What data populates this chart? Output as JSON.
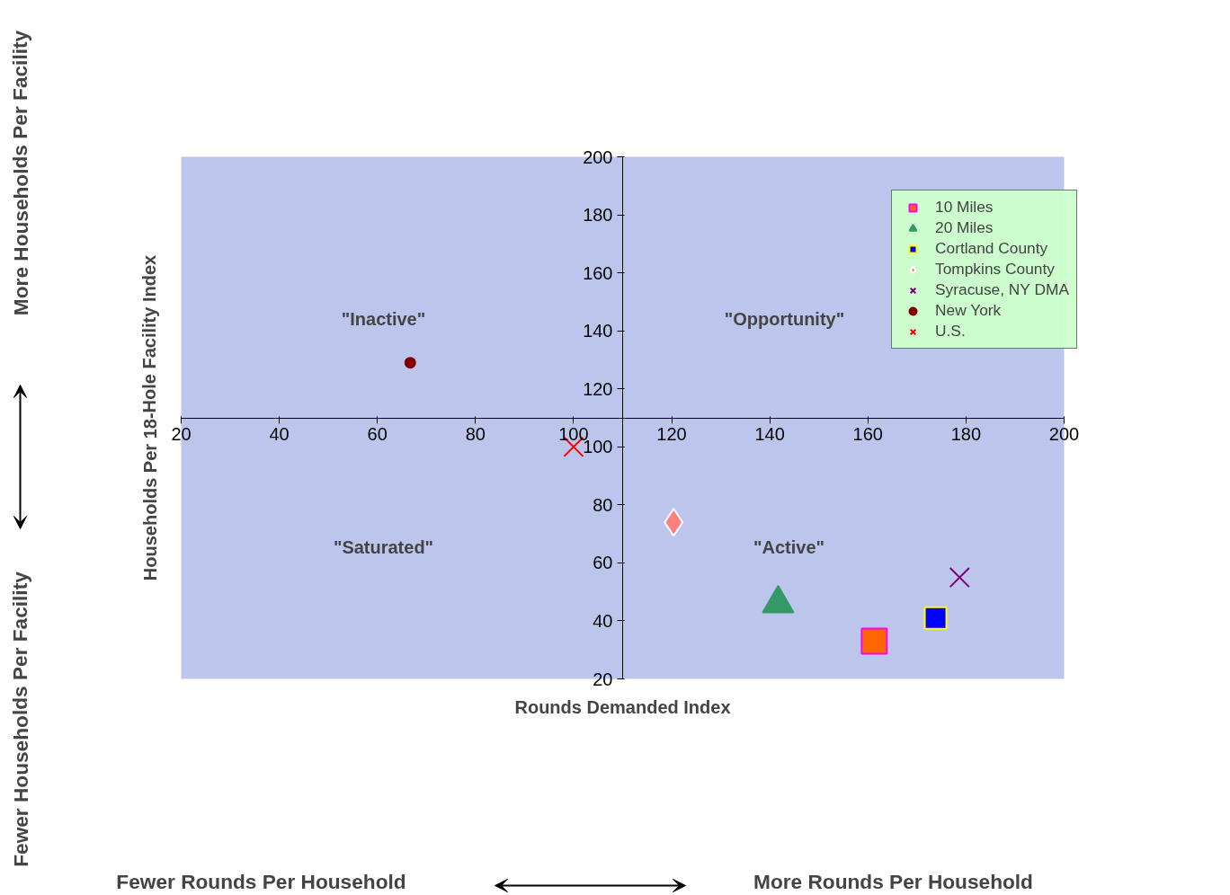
{
  "chart_data": {
    "type": "scatter",
    "xlabel": "Rounds Demanded Index",
    "ylabel": "Households Per 18-Hole Facility Index",
    "xlim": [
      20,
      200
    ],
    "ylim": [
      20,
      200
    ],
    "xticks": [
      20,
      40,
      60,
      80,
      100,
      120,
      140,
      160,
      180,
      200
    ],
    "yticks": [
      20,
      40,
      60,
      80,
      100,
      120,
      140,
      160,
      180,
      200
    ],
    "grid": false,
    "legend": "top right",
    "series": [
      {
        "name": "10 Miles",
        "color": "#ff6600",
        "marker": "square",
        "x": [
          161.3
        ],
        "values": [
          33
        ]
      },
      {
        "name": "20 Miles",
        "color": "#339966",
        "marker": "triangle",
        "x": [
          141.7
        ],
        "values": [
          46
        ]
      },
      {
        "name": "Cortland County",
        "color": "#0000ff",
        "marker": "square",
        "x": [
          173.8
        ],
        "values": [
          41
        ]
      },
      {
        "name": "Tompkins County",
        "color": "#ff8080",
        "marker": "diamond",
        "x": [
          120.4
        ],
        "values": [
          74
        ]
      },
      {
        "name": "Syracuse, NY DMA",
        "color": "#800080",
        "marker": "cross",
        "x": [
          178.7
        ],
        "values": [
          55
        ]
      },
      {
        "name": "New York",
        "color": "#800000",
        "marker": "circle",
        "x": [
          66.7
        ],
        "values": [
          129
        ]
      },
      {
        "name": "U.S.",
        "color": "#ff0000",
        "marker": "cross",
        "x": [
          100
        ],
        "values": [
          100
        ]
      }
    ],
    "annotations": [
      "\"Inactive\"",
      "\"Opportunity\"",
      "\"Saturated\"",
      "\"Active\"",
      "More Households Per Facility",
      "Fewer Households Per Facility",
      "Fewer Rounds Per Household",
      "More Rounds Per Household"
    ]
  }
}
